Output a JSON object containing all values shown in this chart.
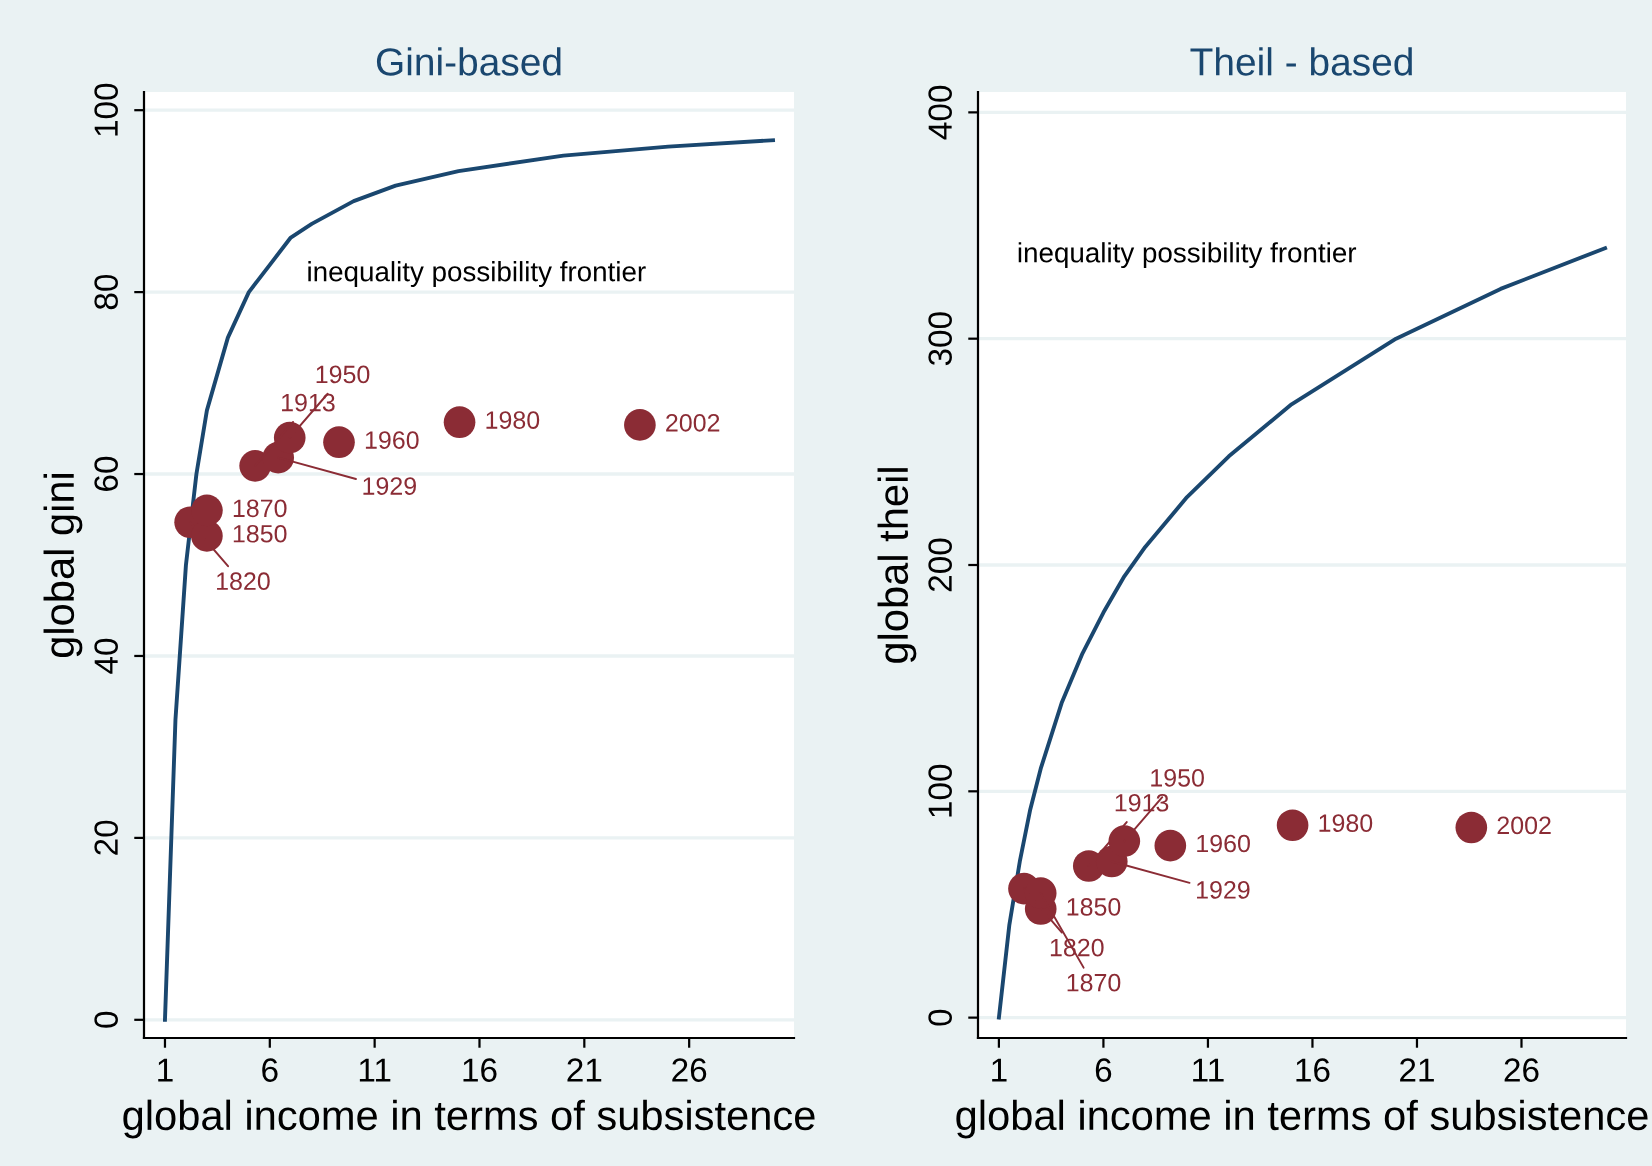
{
  "chart_data": [
    {
      "type": "scatter",
      "title": "Gini-based",
      "xlabel": "global income in terms of subsistence",
      "ylabel": "global gini",
      "xlim": [
        0,
        31
      ],
      "xticks": [
        1,
        6,
        11,
        16,
        21,
        26
      ],
      "ylim": [
        -2,
        102
      ],
      "yticks": [
        0,
        20,
        40,
        60,
        80,
        100
      ],
      "grid": "y",
      "series": [
        {
          "type": "line",
          "name": "inequality possibility frontier",
          "color": "#1a476f",
          "x": [
            1,
            1.5,
            2,
            2.5,
            3,
            4,
            5,
            6,
            7,
            8,
            10,
            12,
            15,
            20,
            25,
            30
          ],
          "values": [
            0,
            33,
            50,
            60,
            67,
            75,
            80,
            83,
            86,
            87.5,
            90,
            91.7,
            93.3,
            95,
            96,
            96.7
          ]
        },
        {
          "color": "#8b2c35",
          "marker": "circle",
          "x": [
            2.2,
            3.0,
            3.0,
            5.3,
            6.4,
            6.95,
            9.3,
            15.05,
            23.65
          ],
          "values": [
            54.7,
            53.2,
            56.0,
            60.9,
            61.8,
            64.0,
            63.5,
            65.7,
            65.4
          ]
        }
      ],
      "annotations": [
        {
          "text": "1820",
          "x": 2.2,
          "y": 54.7
        },
        {
          "text": "1850",
          "x": 3.0,
          "y": 53.2
        },
        {
          "text": "1870",
          "x": 3.0,
          "y": 56.0
        },
        {
          "text": "1913",
          "x": 5.3,
          "y": 60.9
        },
        {
          "text": "1929",
          "x": 6.4,
          "y": 61.8
        },
        {
          "text": "1950",
          "x": 6.95,
          "y": 64.0
        },
        {
          "text": "1960",
          "x": 9.3,
          "y": 63.5
        },
        {
          "text": "1980",
          "x": 15.05,
          "y": 65.7
        },
        {
          "text": "2002",
          "x": 23.65,
          "y": 65.4
        }
      ]
    },
    {
      "type": "scatter",
      "title": "Theil - based",
      "xlabel": "global income in terms of subsistence",
      "ylabel": "global theil",
      "xlim": [
        0,
        31
      ],
      "xticks": [
        1,
        6,
        11,
        16,
        21,
        26
      ],
      "ylim": [
        -9,
        409
      ],
      "yticks": [
        0,
        100,
        200,
        300,
        400
      ],
      "grid": "y",
      "series": [
        {
          "type": "line",
          "name": "inequality possibility frontier",
          "color": "#1a476f",
          "x": [
            1,
            1.5,
            2,
            2.5,
            3,
            4,
            5,
            6,
            7,
            8,
            10,
            12,
            15,
            20,
            25,
            30
          ],
          "values": [
            0,
            41,
            69,
            92,
            110,
            139,
            161,
            179,
            195,
            208,
            230,
            248,
            271,
            300,
            322,
            340
          ]
        },
        {
          "color": "#8b2c35",
          "marker": "circle",
          "x": [
            2.2,
            3.0,
            3.0,
            5.3,
            6.4,
            7.0,
            9.2,
            15.05,
            23.6
          ],
          "values": [
            57,
            48,
            55,
            67,
            69,
            78,
            76,
            85,
            84
          ]
        }
      ],
      "annotations": [
        {
          "text": "1820",
          "x": 2.2,
          "y": 57
        },
        {
          "text": "1850",
          "x": 3.0,
          "y": 48
        },
        {
          "text": "1870",
          "x": 3.0,
          "y": 55
        },
        {
          "text": "1913",
          "x": 5.3,
          "y": 67
        },
        {
          "text": "1929",
          "x": 6.4,
          "y": 69
        },
        {
          "text": "1950",
          "x": 7.0,
          "y": 78
        },
        {
          "text": "1960",
          "x": 9.2,
          "y": 76
        },
        {
          "text": "1980",
          "x": 15.05,
          "y": 85
        },
        {
          "text": "2002",
          "x": 23.6,
          "y": 84
        }
      ]
    }
  ]
}
